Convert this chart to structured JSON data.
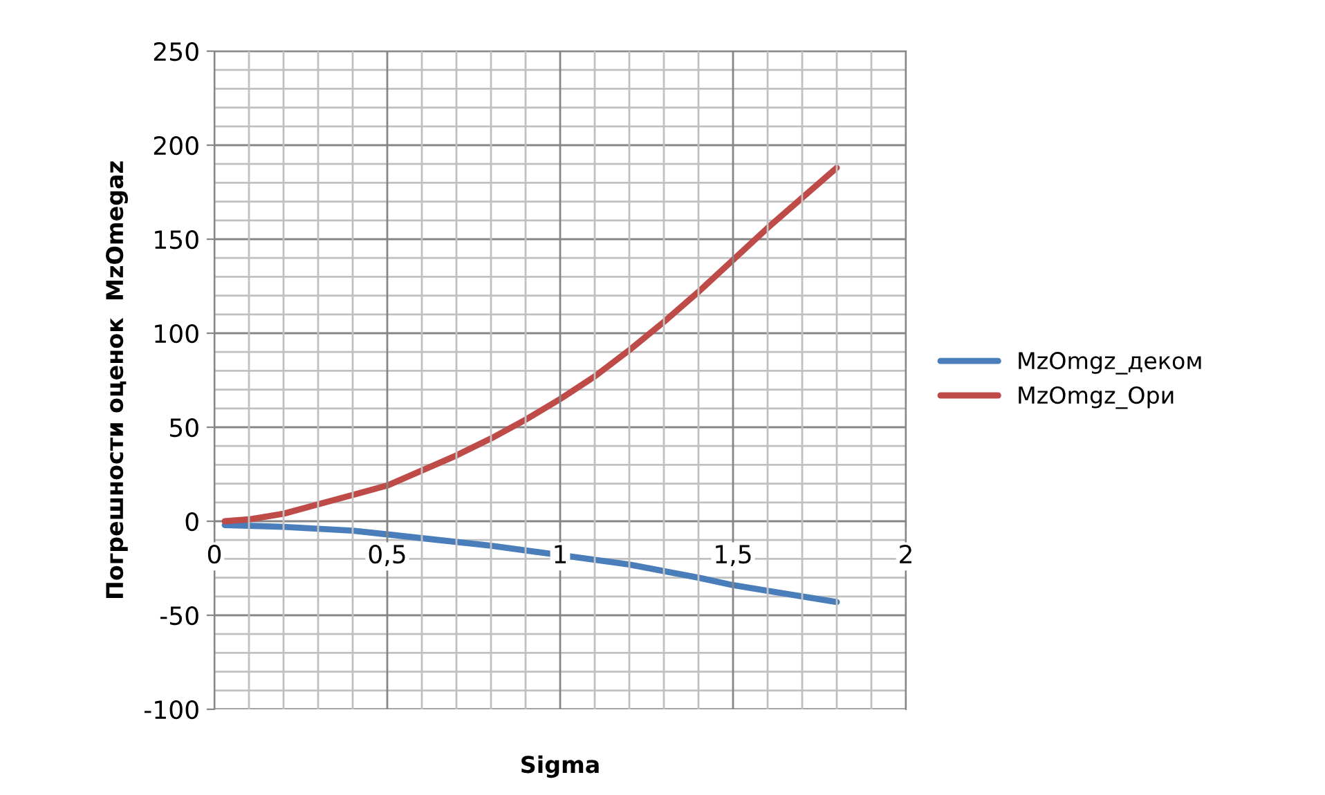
{
  "chart_data": {
    "type": "line",
    "xlabel": "Sigma",
    "ylabel": "Погрешности оценок  MzOmegaz",
    "xlim": [
      0,
      2
    ],
    "xticks": [
      0,
      {
        "value": 0.5,
        "label": "0,5"
      },
      1,
      {
        "value": 1.5,
        "label": "1,5"
      },
      2
    ],
    "ylim": [
      -100,
      250
    ],
    "yticks": [
      -100,
      -50,
      0,
      50,
      100,
      150,
      200,
      250
    ],
    "grid": true,
    "legend": "right",
    "marker": "none",
    "line_style": "solid",
    "series": [
      {
        "name": "MzOmgz_деком",
        "color": "#4a7ebb",
        "x": [
          0.03,
          0.2,
          0.4,
          0.5,
          0.6,
          0.8,
          1.0,
          1.2,
          1.4,
          1.5,
          1.6,
          1.8
        ],
        "values": [
          -2,
          -3,
          -5,
          -7,
          -9,
          -13,
          -18,
          -23,
          -30,
          -34,
          -37,
          -43
        ]
      },
      {
        "name": "MzOmgz_Ори",
        "color": "#be4b48",
        "x": [
          0.03,
          0.1,
          0.2,
          0.3,
          0.4,
          0.5,
          0.6,
          0.7,
          0.8,
          0.9,
          1.0,
          1.1,
          1.2,
          1.3,
          1.4,
          1.5,
          1.6,
          1.7,
          1.8
        ],
        "values": [
          0,
          1,
          4,
          9,
          14,
          19,
          27,
          35,
          44,
          54,
          65,
          77,
          91,
          106,
          122,
          139,
          156,
          172,
          188
        ]
      }
    ]
  }
}
